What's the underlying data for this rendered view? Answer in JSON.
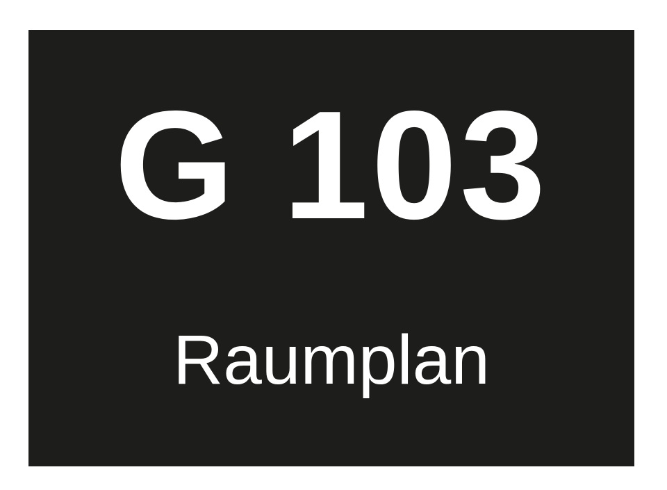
{
  "sign": {
    "room_number": "G 103",
    "label": "Raumplan",
    "colors": {
      "plate": "#1d1d1b",
      "text": "#ffffff",
      "background": "#ffffff"
    }
  }
}
